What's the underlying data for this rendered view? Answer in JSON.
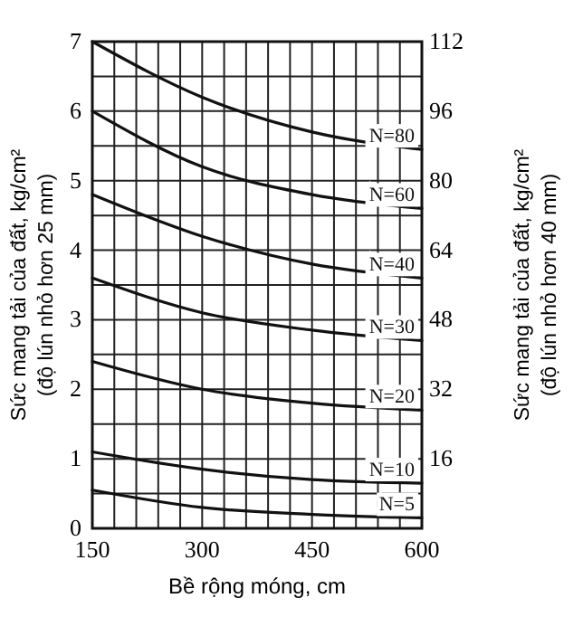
{
  "chart_data": {
    "type": "line",
    "xlabel": "Bề rộng móng, cm",
    "ylabel": "Sức mang tải của đất, kg/cm²\n(độ lún nhỏ hơn 25 mm)",
    "y2label": "Sức mang tải của đất, kg/cm²\n(độ lún nhỏ hơn 40 mm)",
    "x": [
      150,
      300,
      450,
      600
    ],
    "series": [
      {
        "name": "N=80",
        "color": "#111111",
        "values": [
          7.0,
          6.2,
          5.7,
          5.45
        ]
      },
      {
        "name": "N=60",
        "color": "#111111",
        "values": [
          6.0,
          5.2,
          4.8,
          4.6
        ]
      },
      {
        "name": "N=40",
        "color": "#111111",
        "values": [
          4.8,
          4.2,
          3.8,
          3.6
        ]
      },
      {
        "name": "N=30",
        "color": "#111111",
        "values": [
          3.6,
          3.1,
          2.85,
          2.7
        ]
      },
      {
        "name": "N=20",
        "color": "#111111",
        "values": [
          2.4,
          2.0,
          1.8,
          1.7
        ]
      },
      {
        "name": "N=10",
        "color": "#111111",
        "values": [
          1.1,
          0.85,
          0.7,
          0.65
        ]
      },
      {
        "name": "N=5",
        "color": "#111111",
        "values": [
          0.55,
          0.3,
          0.2,
          0.15
        ]
      }
    ],
    "xlim": [
      150,
      600
    ],
    "xticks": [
      150,
      {
        "value": 180,
        "label": null
      },
      {
        "value": 210,
        "label": null
      },
      {
        "value": 240,
        "label": null
      },
      {
        "value": 270,
        "label": null
      },
      300,
      {
        "value": 330,
        "label": null
      },
      {
        "value": 360,
        "label": null
      },
      {
        "value": 390,
        "label": null
      },
      {
        "value": 420,
        "label": null
      },
      450,
      {
        "value": 480,
        "label": null
      },
      {
        "value": 510,
        "label": null
      },
      {
        "value": 540,
        "label": null
      },
      {
        "value": 570,
        "label": null
      },
      600
    ],
    "ylim": [
      0,
      7
    ],
    "yticks": [
      0,
      {
        "value": 0.5,
        "label": null
      },
      1,
      {
        "value": 1.5,
        "label": null
      },
      2,
      {
        "value": 2.5,
        "label": null
      },
      3,
      {
        "value": 3.5,
        "label": null
      },
      4,
      {
        "value": 4.5,
        "label": null
      },
      5,
      {
        "value": 5.5,
        "label": null
      },
      6,
      {
        "value": 6.5,
        "label": null
      },
      7
    ],
    "y2lim": [
      0,
      112
    ],
    "y2ticks": [
      16,
      32,
      48,
      64,
      80,
      96,
      112
    ],
    "grid": true,
    "marker": "none",
    "line_style": "solid"
  }
}
